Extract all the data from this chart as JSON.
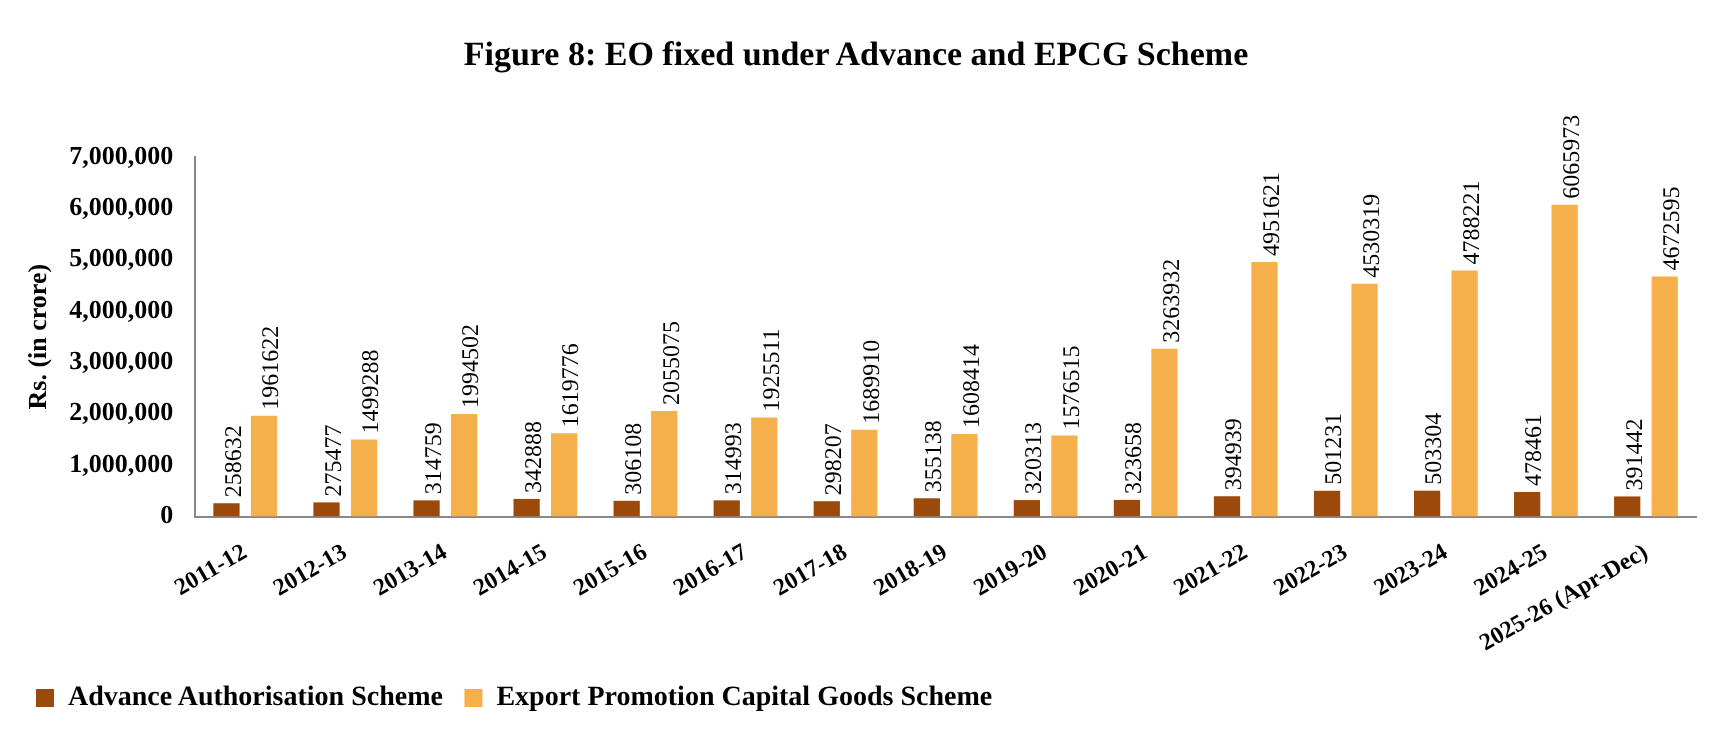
{
  "chart_data": {
    "type": "bar",
    "title": "Figure 8: EO fixed under Advance and EPCG Scheme",
    "ylabel": "Rs. (in crore)",
    "categories": [
      "2011-12",
      "2012-13",
      "2013-14",
      "2014-15",
      "2015-16",
      "2016-17",
      "2017-18",
      "2018-19",
      "2019-20",
      "2020-21",
      "2021-22",
      "2022-23",
      "2023-24",
      "2024-25",
      "2025-26 (Apr-Dec)"
    ],
    "series": [
      {
        "name": "Advance Authorisation Scheme",
        "color": "#9c4a0c",
        "values": [
          258632,
          275477,
          314759,
          342888,
          306108,
          314993,
          298207,
          355138,
          320313,
          323658,
          394939,
          501231,
          503304,
          478461,
          391442
        ]
      },
      {
        "name": "Export Promotion Capital Goods Scheme",
        "color": "#f5b04c",
        "values": [
          1961622,
          1499288,
          1994502,
          1619776,
          2055075,
          1925511,
          1689910,
          1608414,
          1576515,
          3263932,
          4951621,
          4530319,
          4788221,
          6065973,
          4672595
        ]
      }
    ],
    "ylim": [
      0,
      7000000
    ],
    "yticks": [
      0,
      {
        "value": 1000000,
        "label": "1,000,000"
      },
      {
        "value": 2000000,
        "label": "2,000,000"
      },
      {
        "value": 3000000,
        "label": "3,000,000"
      },
      {
        "value": 4000000,
        "label": "4,000,000"
      },
      {
        "value": 5000000,
        "label": "5,000,000"
      },
      {
        "value": 6000000,
        "label": "6,000,000"
      },
      {
        "value": 7000000,
        "label": "7,000,000"
      }
    ],
    "grid": false,
    "legend": "bottom left",
    "data_labels": true
  }
}
